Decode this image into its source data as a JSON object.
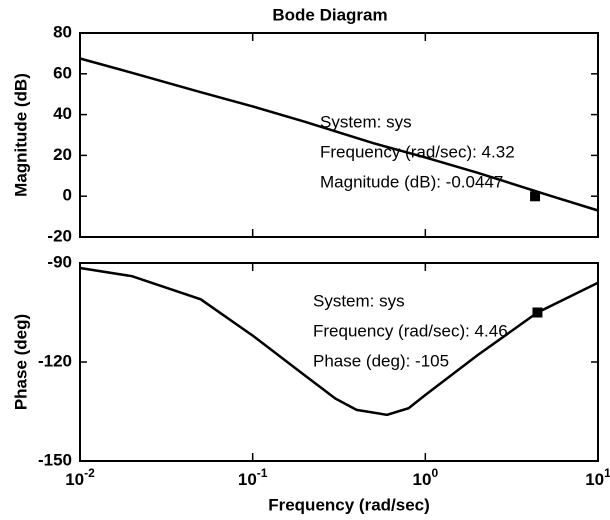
{
  "chart_data": [
    {
      "type": "line",
      "title": "Bode Diagram",
      "ylabel": "Magnitude (dB)",
      "xscale": "log",
      "show_xtick_labels": false,
      "x": [
        0.01,
        0.02,
        0.05,
        0.1,
        0.2,
        0.5,
        1,
        2,
        5,
        10
      ],
      "series": [
        {
          "color": "#000000",
          "values": [
            67.5,
            60.5,
            51,
            44,
            36.5,
            26,
            19,
            11.5,
            0.9,
            -7
          ]
        }
      ],
      "xlim": [
        0.01,
        10
      ],
      "xticks": [
        0.01,
        0.1,
        1,
        10
      ],
      "ylim": [
        -20,
        80
      ],
      "yticks": [
        -20,
        0,
        20,
        40,
        60,
        80
      ],
      "datatip": {
        "x": 4.32,
        "y": -0.0447,
        "lines": [
          "System: sys",
          "Frequency (rad/sec): 4.32",
          "Magnitude (dB): -0.0447"
        ]
      }
    },
    {
      "type": "line",
      "ylabel": "Phase (deg)",
      "xlabel": "Frequency (rad/sec)",
      "xscale": "log",
      "show_xtick_labels": true,
      "x": [
        0.01,
        0.02,
        0.05,
        0.1,
        0.2,
        0.3,
        0.4,
        0.6,
        0.8,
        1,
        2,
        4.46,
        10
      ],
      "series": [
        {
          "color": "#000000",
          "values": [
            -91.5,
            -94,
            -101,
            -112,
            -124,
            -131,
            -134.5,
            -136,
            -134,
            -130,
            -118,
            -105,
            -96
          ]
        }
      ],
      "xlim": [
        0.01,
        10
      ],
      "xticks": [
        {
          "value": 0.01,
          "label": "10-2"
        },
        {
          "value": 0.1,
          "label": "10-1"
        },
        {
          "value": 1,
          "label": "100"
        },
        {
          "value": 10,
          "label": "101"
        }
      ],
      "ylim": [
        -150,
        -90
      ],
      "yticks": [
        -150,
        -120,
        -90
      ],
      "datatip": {
        "x": 4.46,
        "y": -105,
        "lines": [
          "System: sys",
          "Frequency (rad/sec): 4.46",
          "Phase (deg): -105"
        ]
      }
    }
  ]
}
